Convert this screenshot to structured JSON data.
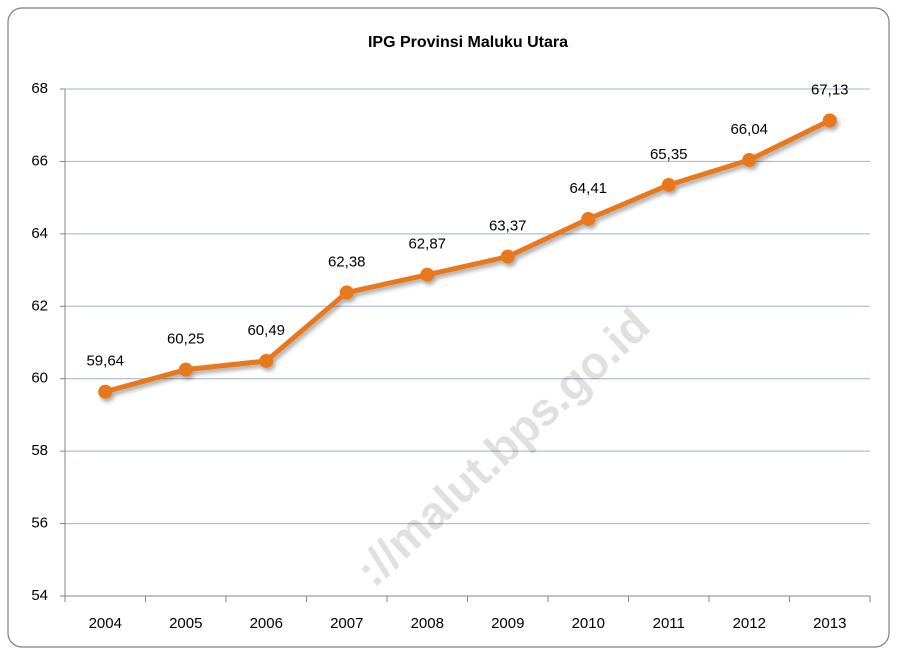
{
  "chart_data": {
    "type": "line",
    "title": "IPG Provinsi Maluku Utara",
    "categories": [
      "2004",
      "2005",
      "2006",
      "2007",
      "2008",
      "2009",
      "2010",
      "2011",
      "2012",
      "2013"
    ],
    "values": [
      59.64,
      60.25,
      60.49,
      62.38,
      62.87,
      63.37,
      64.41,
      65.35,
      66.04,
      67.13
    ],
    "value_labels": [
      "59,64",
      "60,25",
      "60,49",
      "62,38",
      "62,87",
      "63,37",
      "64,41",
      "65,35",
      "66,04",
      "67,13"
    ],
    "color": "#e8781e",
    "ylim": [
      54,
      68
    ],
    "yticks": [
      54,
      56,
      58,
      60,
      62,
      64,
      66,
      68
    ],
    "grid": true,
    "watermark": "://malut.bps.go.id"
  }
}
